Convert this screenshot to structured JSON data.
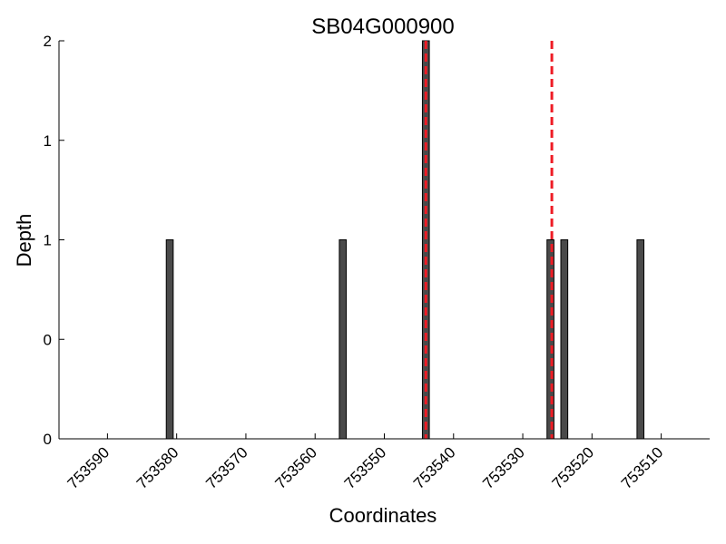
{
  "chart_data": {
    "type": "bar",
    "title": "SB04G000900",
    "xlabel": "Coordinates",
    "ylabel": "Depth",
    "x_reversed": true,
    "xlim": [
      753597,
      753503
    ],
    "ylim": [
      0,
      2
    ],
    "x_ticks": [
      753590,
      753580,
      753570,
      753560,
      753550,
      753540,
      753530,
      753520,
      753510
    ],
    "y_ticks": [
      {
        "value": 0,
        "label": "0"
      },
      {
        "value": 0.5,
        "label": "0"
      },
      {
        "value": 1,
        "label": "1"
      },
      {
        "value": 1.5,
        "label": "1"
      },
      {
        "value": 2,
        "label": "2"
      }
    ],
    "bars": [
      {
        "x": 753581,
        "value": 1
      },
      {
        "x": 753556,
        "value": 1
      },
      {
        "x": 753544,
        "value": 2
      },
      {
        "x": 753526,
        "value": 1
      },
      {
        "x": 753524,
        "value": 1
      },
      {
        "x": 753513,
        "value": 1
      }
    ],
    "bar_width": 1,
    "bar_color": "#4a4a4a",
    "markers": [
      {
        "x": 753544
      },
      {
        "x": 753525.8
      }
    ],
    "marker_color": "#ee1c25",
    "grid": false,
    "legend": "none"
  }
}
